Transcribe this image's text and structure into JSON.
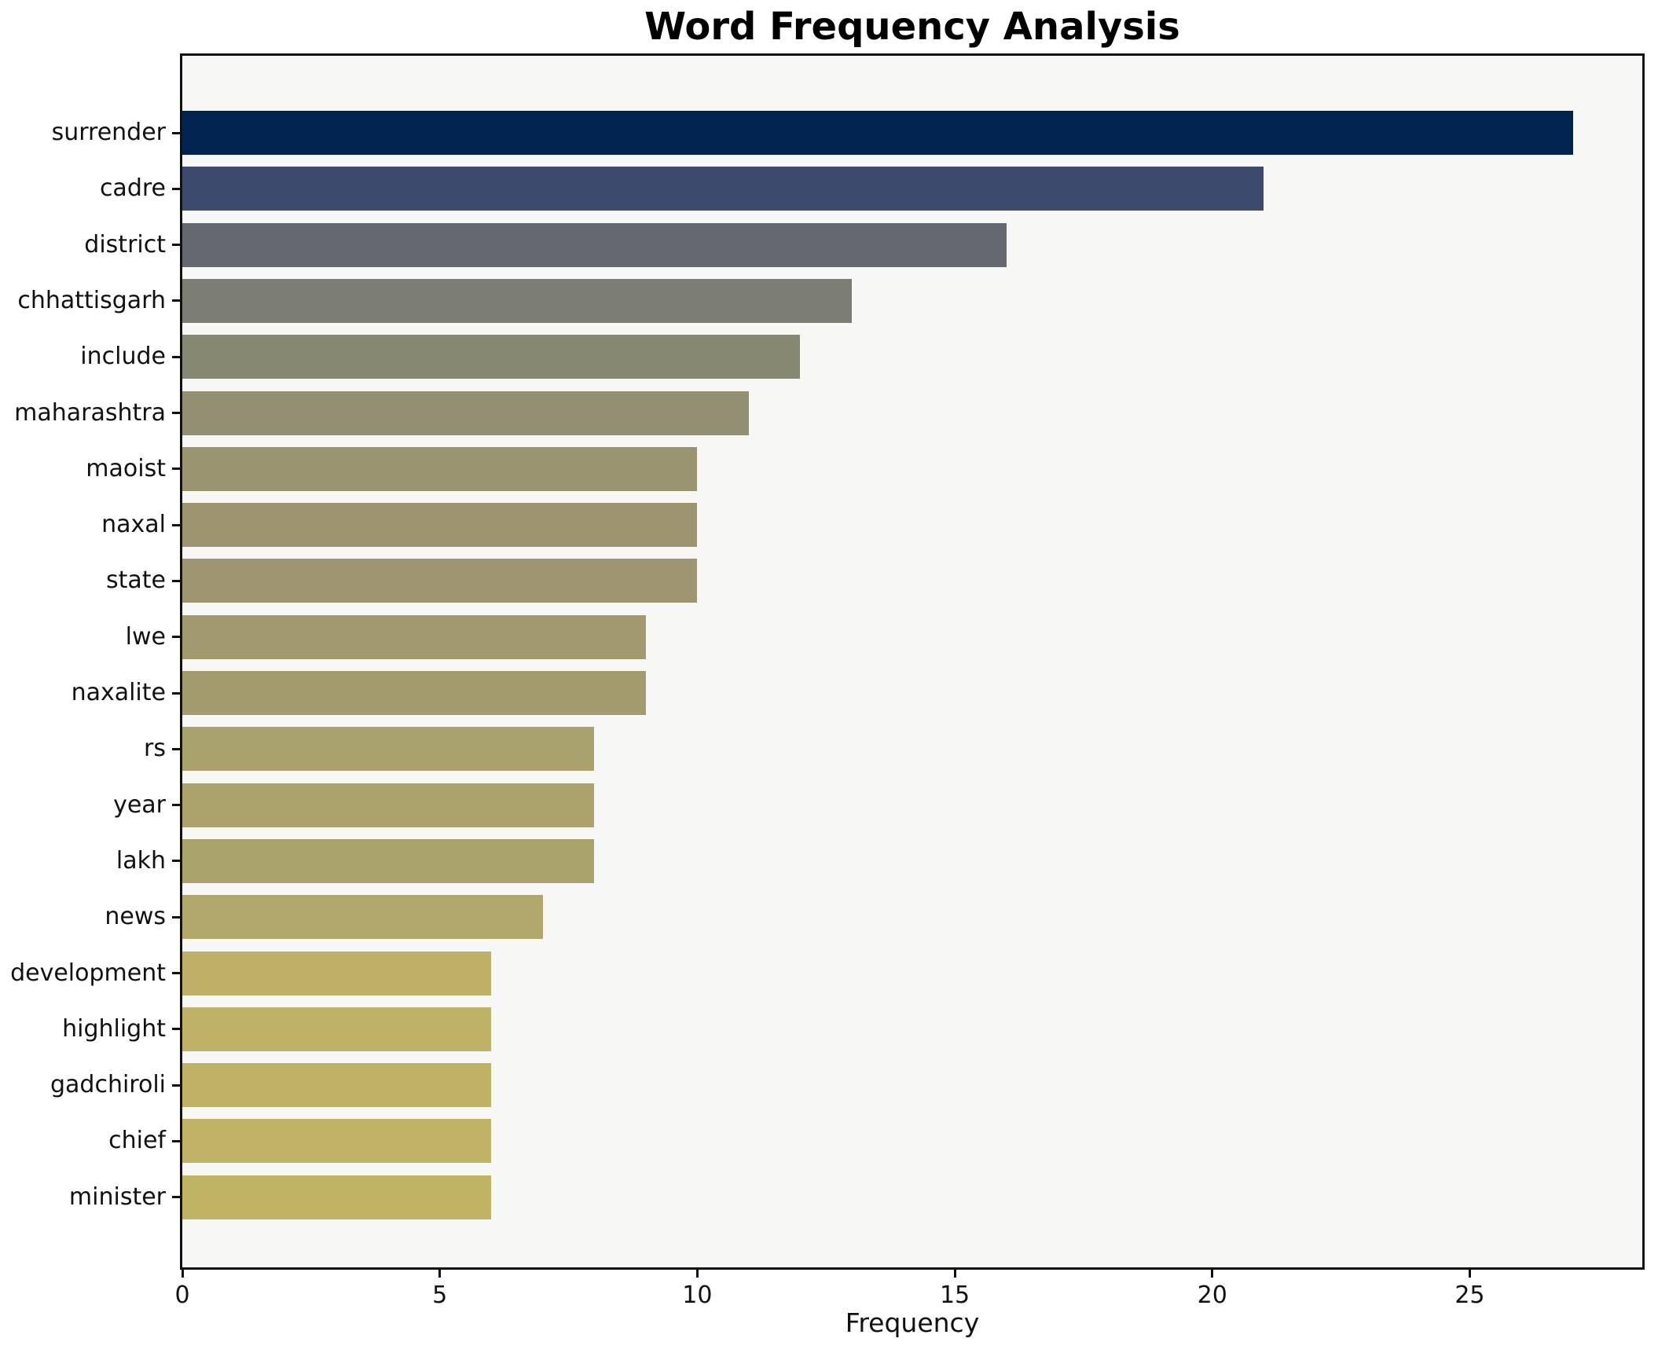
{
  "chart_data": {
    "type": "bar",
    "orientation": "horizontal",
    "title": "Word Frequency Analysis",
    "xlabel": "Frequency",
    "ylabel": "",
    "categories": [
      "surrender",
      "cadre",
      "district",
      "chhattisgarh",
      "include",
      "maharashtra",
      "maoist",
      "naxal",
      "state",
      "lwe",
      "naxalite",
      "rs",
      "year",
      "lakh",
      "news",
      "development",
      "highlight",
      "gadchiroli",
      "chief",
      "minister"
    ],
    "values": [
      27,
      21,
      16,
      13,
      12,
      11,
      10,
      10,
      10,
      9,
      9,
      8,
      8,
      8,
      7,
      6,
      6,
      6,
      6,
      6
    ],
    "bar_colors": [
      "#00234f",
      "#3c4a6e",
      "#64686f",
      "#7c7e73",
      "#878872",
      "#938f73",
      "#9b9470",
      "#9c9570",
      "#9d9670",
      "#a19a6e",
      "#a29b6e",
      "#aaa26c",
      "#aba26c",
      "#aba36c",
      "#b1a86a",
      "#bcb166",
      "#bdb266",
      "#beb365",
      "#bfb365",
      "#c0b464"
    ],
    "x_ticks": [
      0,
      5,
      10,
      15,
      20,
      25
    ],
    "xlim": [
      0,
      28.35
    ],
    "grid": false,
    "legend": null,
    "plot_bg": "#f7f7f6",
    "figure_bg": "#ffffff",
    "spine_color": "#111111",
    "text_color": "#111111"
  }
}
